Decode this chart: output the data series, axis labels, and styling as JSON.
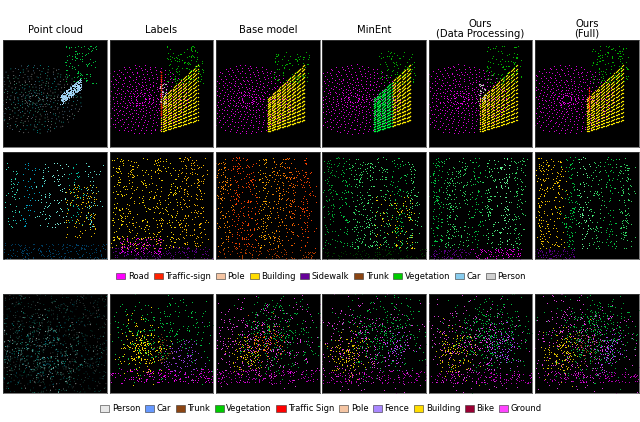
{
  "col_headers_split": [
    [
      "Point cloud"
    ],
    [
      "Labels"
    ],
    [
      "Base model"
    ],
    [
      "MinEnt"
    ],
    [
      "Ours",
      "(Data Processing)"
    ],
    [
      "Ours",
      "(Full)"
    ]
  ],
  "n_cols": 6,
  "legend1": {
    "items": [
      {
        "label": "Road",
        "color": "#ff00ff"
      },
      {
        "label": "Traffic-sign",
        "color": "#ff2200"
      },
      {
        "label": "Pole",
        "color": "#f5c5a3"
      },
      {
        "label": "Building",
        "color": "#ffdd00"
      },
      {
        "label": "Sidewalk",
        "color": "#660099"
      },
      {
        "label": "Trunk",
        "color": "#8B4513"
      },
      {
        "label": "Vegetation",
        "color": "#00cc00"
      },
      {
        "label": "Car",
        "color": "#88ccee"
      },
      {
        "label": "Person",
        "color": "#d0d0d0"
      }
    ]
  },
  "legend2": {
    "items": [
      {
        "label": "Person",
        "color": "#e8e8e8"
      },
      {
        "label": "Car",
        "color": "#6699ff"
      },
      {
        "label": "Trunk",
        "color": "#8B4513"
      },
      {
        "label": "Vegetation",
        "color": "#00cc00"
      },
      {
        "label": "Traffic Sign",
        "color": "#ff0000"
      },
      {
        "label": "Pole",
        "color": "#f5c5a3"
      },
      {
        "label": "Fence",
        "color": "#aa88ff"
      },
      {
        "label": "Building",
        "color": "#ffdd00"
      },
      {
        "label": "Bike",
        "color": "#990033"
      },
      {
        "label": "Ground",
        "color": "#ff44ff"
      }
    ]
  },
  "bg_color": "#000000",
  "fig_bg": "#ffffff"
}
